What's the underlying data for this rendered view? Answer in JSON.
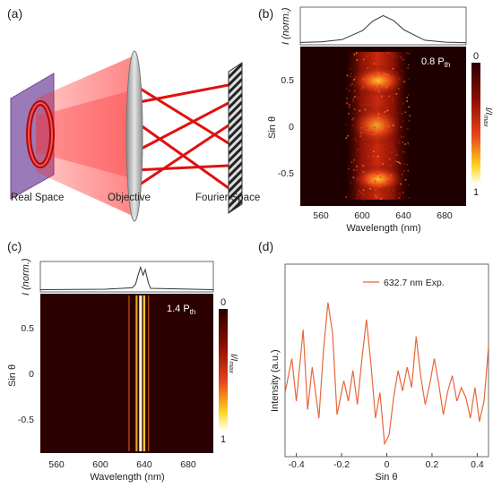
{
  "panels": {
    "a": {
      "label": "(a)",
      "captions": {
        "real_space": "Real Space",
        "objective": "Objective",
        "fourier_space": "Fourier Space"
      }
    },
    "b": {
      "label": "(b)",
      "top_ylabel": "I (norm.)",
      "annotation": "0.8 P",
      "annotation_sub": "th",
      "ylabel": "Sin θ",
      "xlabel": "Wavelength (nm)",
      "xticks": [
        "560",
        "600",
        "640",
        "680"
      ],
      "yticks": [
        "0.5",
        "0",
        "-0.5"
      ],
      "colorbar": {
        "top": "0",
        "bottom": "1",
        "label": "I/I",
        "label_sub": "max"
      }
    },
    "c": {
      "label": "(c)",
      "top_ylabel": "I (norm.)",
      "annotation": "1.4 P",
      "annotation_sub": "th",
      "ylabel": "Sin θ",
      "xlabel": "Wavelength (nm)",
      "xticks": [
        "560",
        "600",
        "640",
        "680"
      ],
      "yticks": [
        "0.5",
        "0",
        "-0.5"
      ],
      "colorbar": {
        "top": "0",
        "bottom": "1",
        "label": "I/I",
        "label_sub": "max"
      }
    },
    "d": {
      "label": "(d)",
      "ylabel": "Intensity (a.u.)",
      "xlabel": "Sin θ",
      "legend": "632.7 nm Exp.",
      "line_color": "#e8663c",
      "xticks": [
        "-0.4",
        "-0.2",
        "0",
        "0.2",
        "0.4"
      ]
    }
  },
  "chart_data": [
    {
      "type": "line",
      "panel": "b-top",
      "x": [
        540,
        560,
        580,
        600,
        610,
        620,
        630,
        640,
        660,
        680,
        700
      ],
      "y": [
        0.02,
        0.04,
        0.12,
        0.45,
        0.8,
        1.0,
        0.82,
        0.48,
        0.1,
        0.03,
        0.01
      ],
      "xlim": [
        540,
        700
      ],
      "ylabel": "I (norm.)"
    },
    {
      "type": "heatmap",
      "panel": "b",
      "xlim": [
        540,
        700
      ],
      "ylim": [
        -0.9,
        0.9
      ],
      "xlabel": "Wavelength (nm)",
      "ylabel": "Sin θ",
      "emission_band_nm": [
        595,
        645
      ],
      "bright_lobes_sin": [
        0.5,
        0.1,
        -0.15,
        -0.55
      ]
    },
    {
      "type": "line",
      "panel": "c-top",
      "x": [
        540,
        600,
        625,
        628,
        630,
        632.7,
        635,
        637,
        640,
        642,
        700
      ],
      "y": [
        0.02,
        0.04,
        0.1,
        0.25,
        0.6,
        1.0,
        0.65,
        0.9,
        0.3,
        0.08,
        0.02
      ],
      "xlim": [
        540,
        700
      ],
      "ylabel": "I (norm.)"
    },
    {
      "type": "heatmap",
      "panel": "c",
      "xlim": [
        540,
        700
      ],
      "ylim": [
        -0.9,
        0.9
      ],
      "xlabel": "Wavelength (nm)",
      "ylabel": "Sin θ",
      "lasing_lines_nm": [
        622,
        629,
        632.7,
        636,
        640
      ]
    },
    {
      "type": "line",
      "panel": "d",
      "xlabel": "Sin θ",
      "ylabel": "Intensity (a.u.)",
      "xlim": [
        -0.45,
        0.45
      ],
      "series": [
        {
          "name": "632.7 nm Exp.",
          "x": [
            -0.45,
            -0.42,
            -0.4,
            -0.37,
            -0.35,
            -0.33,
            -0.3,
            -0.28,
            -0.26,
            -0.24,
            -0.22,
            -0.19,
            -0.17,
            -0.15,
            -0.13,
            -0.11,
            -0.09,
            -0.07,
            -0.05,
            -0.03,
            -0.01,
            0.01,
            0.03,
            0.05,
            0.07,
            0.09,
            0.11,
            0.13,
            0.15,
            0.17,
            0.19,
            0.21,
            0.23,
            0.25,
            0.27,
            0.29,
            0.31,
            0.33,
            0.35,
            0.37,
            0.39,
            0.41,
            0.43,
            0.45
          ],
          "y": [
            0.35,
            0.55,
            0.3,
            0.72,
            0.25,
            0.5,
            0.2,
            0.6,
            0.88,
            0.7,
            0.22,
            0.42,
            0.3,
            0.48,
            0.28,
            0.55,
            0.78,
            0.52,
            0.2,
            0.35,
            0.05,
            0.1,
            0.32,
            0.48,
            0.36,
            0.5,
            0.38,
            0.68,
            0.45,
            0.28,
            0.4,
            0.55,
            0.4,
            0.22,
            0.36,
            0.45,
            0.3,
            0.38,
            0.32,
            0.2,
            0.38,
            0.18,
            0.3,
            0.62
          ]
        }
      ]
    }
  ]
}
